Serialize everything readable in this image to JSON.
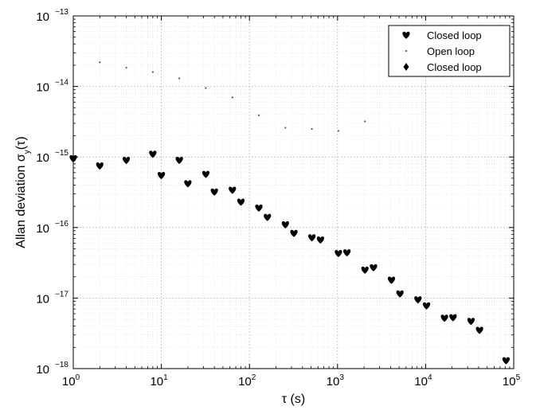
{
  "chart_data": {
    "type": "scatter",
    "xlabel": "τ (s)",
    "ylabel": "Allan deviation σ_y(τ)",
    "ylabel_main": "Allan deviation σ",
    "ylabel_sub": "y",
    "ylabel_tail": "(τ)",
    "x_scale": "log",
    "y_scale": "log",
    "xlim": [
      1,
      100000
    ],
    "ylim": [
      1e-18,
      1e-13
    ],
    "x_ticks": [
      {
        "base": "10",
        "exp": "0"
      },
      {
        "base": "10",
        "exp": "1"
      },
      {
        "base": "10",
        "exp": "2"
      },
      {
        "base": "10",
        "exp": "3"
      },
      {
        "base": "10",
        "exp": "4"
      },
      {
        "base": "10",
        "exp": "5"
      }
    ],
    "y_ticks": [
      {
        "base": "10",
        "exp": "−18"
      },
      {
        "base": "10",
        "exp": "−17"
      },
      {
        "base": "10",
        "exp": "−16"
      },
      {
        "base": "10",
        "exp": "−15"
      },
      {
        "base": "10",
        "exp": "−14"
      },
      {
        "base": "10",
        "exp": "−13"
      }
    ],
    "grid": true,
    "legend_position": "top-right",
    "series": [
      {
        "name": "Closed loop",
        "marker": "heart",
        "x": [
          1,
          2,
          4,
          8,
          10,
          16,
          20,
          32,
          40,
          64,
          80,
          128,
          160,
          256,
          320,
          512,
          640,
          1024,
          1280,
          2048,
          2560,
          4096,
          5120,
          8192,
          10240,
          16384,
          20480,
          32768,
          40960,
          81920
        ],
        "y": [
          9.5e-16,
          7.5e-16,
          9e-16,
          1.1e-15,
          5.5e-16,
          9e-16,
          4.2e-16,
          5.7e-16,
          3.2e-16,
          3.4e-16,
          2.3e-16,
          1.9e-16,
          1.4e-16,
          1.1e-16,
          8.3e-17,
          7.2e-17,
          6.7e-17,
          4.3e-17,
          4.4e-17,
          2.5e-17,
          2.7e-17,
          1.8e-17,
          1.15e-17,
          9.5e-18,
          7.8e-18,
          5.2e-18,
          5.3e-18,
          4.7e-18,
          3.5e-18,
          1.3e-18
        ]
      },
      {
        "name": "Open loop",
        "marker": "dot",
        "x": [
          2,
          4,
          8,
          16,
          32,
          64,
          128,
          256,
          512,
          1024,
          2048
        ],
        "y": [
          2.2e-14,
          1.85e-14,
          1.6e-14,
          1.3e-14,
          9.5e-15,
          7e-15,
          3.9e-15,
          2.6e-15,
          2.5e-15,
          2.35e-15,
          3.2e-15
        ]
      },
      {
        "name": "Closed loop",
        "marker": "diamond",
        "x": [],
        "y": []
      }
    ]
  }
}
